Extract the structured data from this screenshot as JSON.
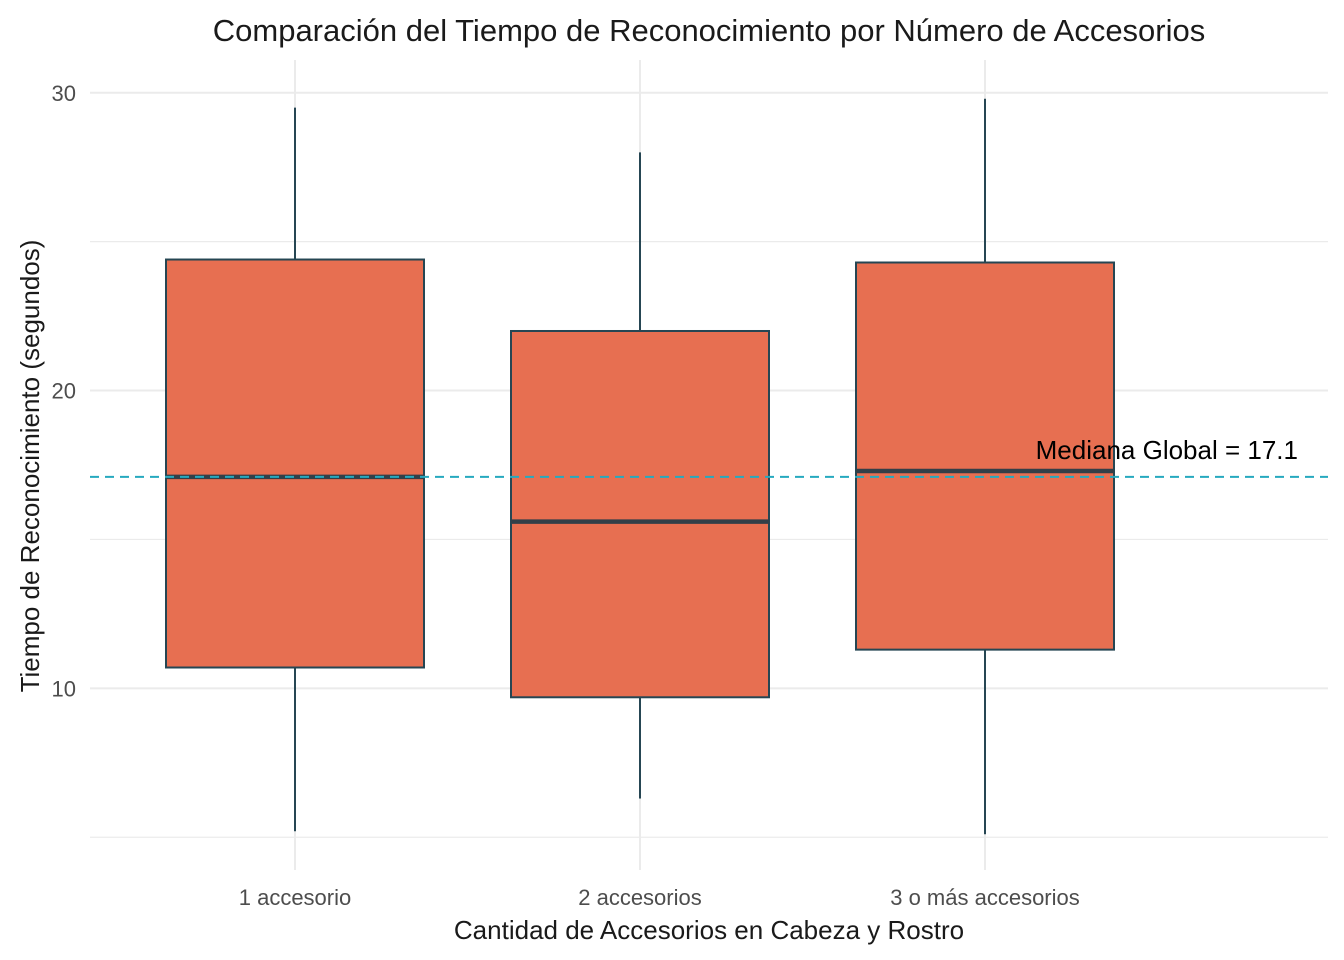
{
  "chart_data": {
    "type": "boxplot",
    "title": "Comparación del Tiempo de Reconocimiento por Número de Accesorios",
    "xlabel": "Cantidad de Accesorios en Cabeza y Rostro",
    "ylabel": "Tiempo de Reconocimiento (segundos)",
    "categories": [
      "1 accesorio",
      "2 accesorios",
      "3 o más accesorios"
    ],
    "boxes": [
      {
        "category": "1 accesorio",
        "min": 5.2,
        "q1": 10.7,
        "median": 17.1,
        "q3": 24.4,
        "max": 29.5
      },
      {
        "category": "2 accesorios",
        "min": 6.3,
        "q1": 9.7,
        "median": 15.6,
        "q3": 22.0,
        "max": 28.0
      },
      {
        "category": "3 o más accesorios",
        "min": 5.1,
        "q1": 11.3,
        "median": 17.3,
        "q3": 24.3,
        "max": 29.8
      }
    ],
    "reference_line": {
      "value": 17.1,
      "label": "Mediana Global = 17.1",
      "style": "dashed",
      "color": "#26A9BF"
    },
    "yticks": [
      10,
      20,
      30
    ],
    "ylim": [
      3.9,
      31.1
    ],
    "grid": true,
    "legend": "none",
    "colors": {
      "box_fill": "#E76F51",
      "box_outline": "#264653",
      "median_line": "#333F48",
      "grid": "#EBEBEB",
      "reference": "#26A9BF"
    }
  }
}
